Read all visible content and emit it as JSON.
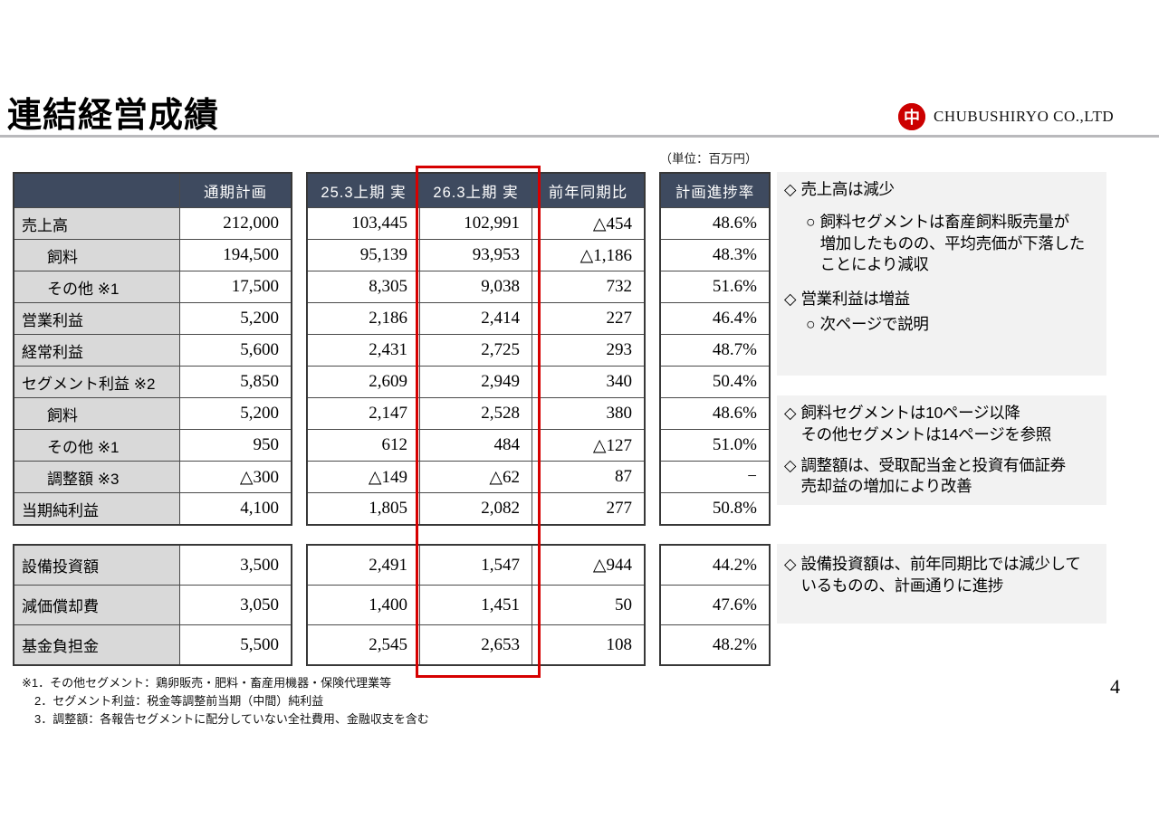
{
  "page": {
    "title": "連結経営成績",
    "unit_note": "（単位：百万円）",
    "page_number": "4",
    "logo_mark": "中",
    "company": "CHUBUSHIRYO CO.,LTD"
  },
  "table": {
    "headers": {
      "corner": "",
      "plan": "通期計画",
      "prev": "25.3上期 実",
      "curr": "26.3上期 実",
      "yoy": "前年同期比",
      "progress": "計画進捗率"
    },
    "rows": [
      {
        "label": "売上高",
        "plan": "212,000",
        "prev": "103,445",
        "curr": "102,991",
        "yoy": "△454",
        "progress": "48.6%"
      },
      {
        "label": "飼料",
        "plan": "194,500",
        "prev": "95,139",
        "curr": "93,953",
        "yoy": "△1,186",
        "progress": "48.3%"
      },
      {
        "label": "その他 ※1",
        "plan": "17,500",
        "prev": "8,305",
        "curr": "9,038",
        "yoy": "732",
        "progress": "51.6%"
      },
      {
        "label": "営業利益",
        "plan": "5,200",
        "prev": "2,186",
        "curr": "2,414",
        "yoy": "227",
        "progress": "46.4%"
      },
      {
        "label": "経常利益",
        "plan": "5,600",
        "prev": "2,431",
        "curr": "2,725",
        "yoy": "293",
        "progress": "48.7%"
      },
      {
        "label": "セグメント利益 ※2",
        "plan": "5,850",
        "prev": "2,609",
        "curr": "2,949",
        "yoy": "340",
        "progress": "50.4%"
      },
      {
        "label": "飼料",
        "plan": "5,200",
        "prev": "2,147",
        "curr": "2,528",
        "yoy": "380",
        "progress": "48.6%"
      },
      {
        "label": "その他 ※1",
        "plan": "950",
        "prev": "612",
        "curr": "484",
        "yoy": "△127",
        "progress": "51.0%"
      },
      {
        "label": "調整額 ※3",
        "plan": "△300",
        "prev": "△149",
        "curr": "△62",
        "yoy": "87",
        "progress": "−"
      },
      {
        "label": "当期純利益",
        "plan": "4,100",
        "prev": "1,805",
        "curr": "2,082",
        "yoy": "277",
        "progress": "50.8%"
      }
    ],
    "bottom_rows": [
      {
        "label": "設備投資額",
        "plan": "3,500",
        "prev": "2,491",
        "curr": "1,547",
        "yoy": "△944",
        "progress": "44.2%"
      },
      {
        "label": "減価償却費",
        "plan": "3,050",
        "prev": "1,400",
        "curr": "1,451",
        "yoy": "50",
        "progress": "47.6%"
      },
      {
        "label": "基金負担金",
        "plan": "5,500",
        "prev": "2,545",
        "curr": "2,653",
        "yoy": "108",
        "progress": "48.2%"
      }
    ]
  },
  "comments": {
    "box1": [
      {
        "marker": "◇",
        "text": "売上高は減少"
      },
      {
        "marker": "○",
        "text": "飼料セグメントは畜産飼料販売量が\n増加したものの、平均売価が下落した\nことにより減収"
      },
      {
        "marker": "◇",
        "text": "営業利益は増益"
      },
      {
        "marker": "○",
        "text": "次ページで説明"
      }
    ],
    "box2": [
      {
        "marker": "◇",
        "text": "飼料セグメントは10ページ以降\nその他セグメントは14ページを参照"
      },
      {
        "marker": "◇",
        "text": "調整額は、受取配当金と投資有価証券\n売却益の増加により改善"
      }
    ],
    "box3": [
      {
        "marker": "◇",
        "text": "設備投資額は、前年同期比では減少して\nいるものの、計画通りに進捗"
      }
    ]
  },
  "notes": {
    "line1": "※1．その他セグメント：鶏卵販売・肥料・畜産用機器・保険代理業等",
    "line2": "2．セグメント利益：税金等調整前当期（中間）純利益",
    "line3": "3．調整額：各報告セグメントに配分していない全社費用、金融収支を含む"
  },
  "colors": {
    "header_bg": "#3E4A5F",
    "label_bg": "#D9D9D9",
    "panel_bg": "#F2F2F2",
    "highlight_red": "#D60000",
    "logo_red": "#CC0000",
    "rule_gray": "#B9B9BC"
  }
}
